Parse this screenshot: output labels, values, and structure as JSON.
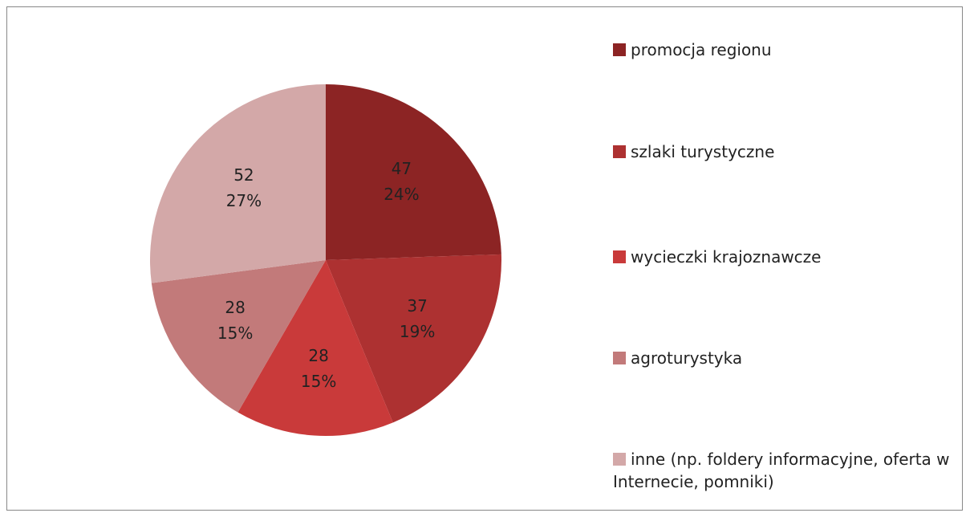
{
  "chart_data": {
    "type": "pie",
    "categories": [
      "promocja regionu",
      "szlaki turystyczne",
      "wycieczki krajoznawcze",
      "agroturystyka",
      "inne (np. foldery informacyjne, oferta w Internecie, pomniki)"
    ],
    "values": [
      47,
      37,
      28,
      28,
      52
    ],
    "percent_labels": [
      "24%",
      "19%",
      "15%",
      "15%",
      "27%"
    ],
    "colors": [
      "#8c2424",
      "#ad3131",
      "#c93a3a",
      "#c27a7a",
      "#d3a8a8"
    ],
    "legend": "right"
  }
}
